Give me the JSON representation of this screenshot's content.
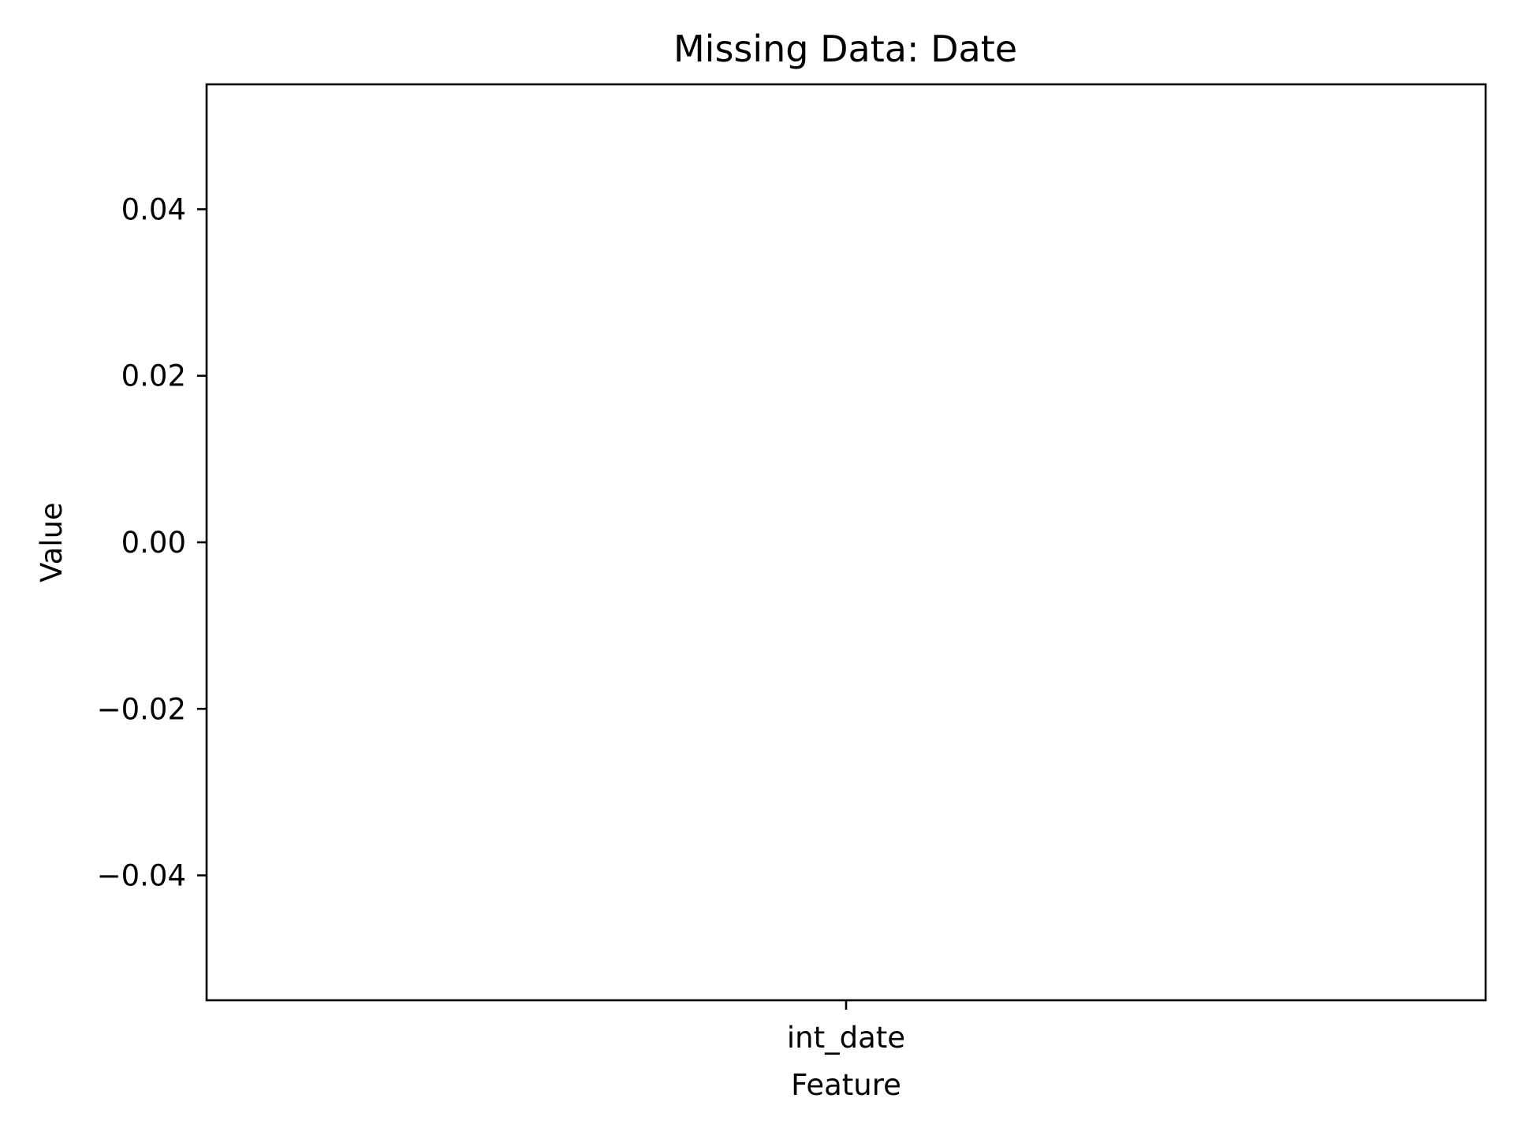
{
  "chart_data": {
    "type": "bar",
    "title": "Missing Data: Date",
    "xlabel": "Feature",
    "ylabel": "Value",
    "categories": [
      "int_date"
    ],
    "values": [
      0
    ],
    "ylim": [
      -0.055,
      0.055
    ],
    "yticks": [
      0.04,
      0.02,
      0.0,
      -0.02,
      -0.04
    ],
    "ytick_labels": [
      "0.04",
      "0.02",
      "0.00",
      "−0.02",
      "−0.04"
    ],
    "grid": false,
    "legend": "none"
  }
}
